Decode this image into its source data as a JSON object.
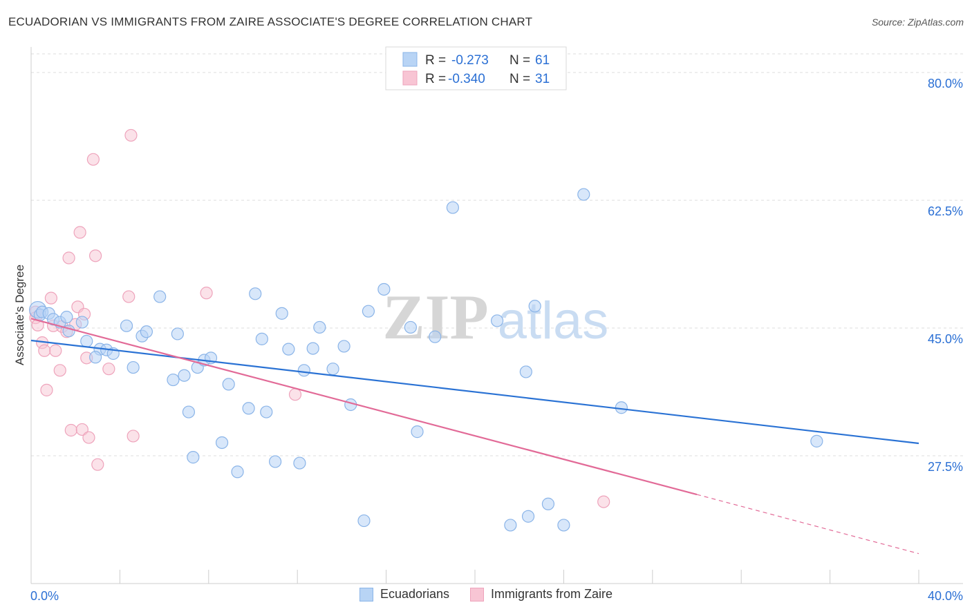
{
  "title": "ECUADORIAN VS IMMIGRANTS FROM ZAIRE ASSOCIATE'S DEGREE CORRELATION CHART",
  "source": "Source: ZipAtlas.com",
  "watermark": {
    "zip": "ZIP",
    "atlas": "atlas"
  },
  "legend_top": [
    {
      "r_label": "R =",
      "r_value": "-0.273",
      "n_label": "N =",
      "n_value": "61"
    },
    {
      "r_label": "R =",
      "r_value": "-0.340",
      "n_label": "N =",
      "n_value": "31"
    }
  ],
  "legend_bottom": [
    "Ecuadorians",
    "Immigrants from Zaire"
  ],
  "colors": {
    "blue_fill": "#b8d4f5",
    "blue_stroke": "#8ab4e8",
    "blue_line": "#2a72d4",
    "pink_fill": "#f8c5d4",
    "pink_stroke": "#eea3bb",
    "pink_line": "#e26a97",
    "value_text": "#2a6fd4",
    "grid": "#dddddd"
  },
  "chart_data": {
    "type": "scatter",
    "title": "ECUADORIAN VS IMMIGRANTS FROM ZAIRE ASSOCIATE'S DEGREE CORRELATION CHART",
    "xlabel": "",
    "ylabel": "Associate's Degree",
    "xlim": [
      0,
      40
    ],
    "ylim": [
      10,
      83.5
    ],
    "x_tick_labels": [
      "0.0%",
      "40.0%"
    ],
    "y_ticks": [
      27.5,
      45.0,
      62.5,
      80.0
    ],
    "y_tick_labels": [
      "27.5%",
      "45.0%",
      "62.5%",
      "80.0%"
    ],
    "grid": true,
    "legend_position": "top-center",
    "series": [
      {
        "name": "Ecuadorians",
        "r": -0.273,
        "n": 61,
        "trend": {
          "x0": 0,
          "y0": 43.3,
          "x1": 40,
          "y1": 29.2
        },
        "points": [
          [
            0.3,
            47.5
          ],
          [
            0.4,
            46.8
          ],
          [
            0.5,
            47.2
          ],
          [
            0.8,
            47.0
          ],
          [
            1.0,
            46.2
          ],
          [
            1.3,
            45.8
          ],
          [
            1.6,
            46.5
          ],
          [
            2.3,
            45.8
          ],
          [
            1.7,
            44.6
          ],
          [
            2.5,
            43.2
          ],
          [
            3.1,
            42.1
          ],
          [
            3.4,
            42.0
          ],
          [
            2.9,
            41.0
          ],
          [
            3.7,
            41.5
          ],
          [
            4.3,
            45.3
          ],
          [
            4.6,
            39.6
          ],
          [
            5.0,
            43.9
          ],
          [
            5.2,
            44.5
          ],
          [
            5.8,
            49.3
          ],
          [
            6.4,
            37.9
          ],
          [
            6.9,
            38.5
          ],
          [
            6.6,
            44.2
          ],
          [
            7.1,
            33.5
          ],
          [
            7.5,
            39.6
          ],
          [
            7.3,
            27.3
          ],
          [
            7.8,
            40.6
          ],
          [
            8.1,
            40.9
          ],
          [
            8.6,
            29.3
          ],
          [
            8.9,
            37.3
          ],
          [
            9.3,
            25.3
          ],
          [
            9.8,
            34.0
          ],
          [
            10.1,
            49.7
          ],
          [
            10.4,
            43.5
          ],
          [
            10.6,
            33.5
          ],
          [
            11.0,
            26.7
          ],
          [
            11.3,
            47.0
          ],
          [
            11.6,
            42.1
          ],
          [
            12.1,
            26.5
          ],
          [
            12.3,
            39.2
          ],
          [
            12.7,
            42.2
          ],
          [
            13.0,
            45.1
          ],
          [
            13.6,
            39.4
          ],
          [
            14.1,
            42.5
          ],
          [
            14.4,
            34.5
          ],
          [
            15.0,
            18.6
          ],
          [
            15.2,
            47.3
          ],
          [
            15.9,
            50.3
          ],
          [
            17.1,
            45.1
          ],
          [
            17.4,
            30.8
          ],
          [
            18.2,
            43.8
          ],
          [
            19.0,
            61.5
          ],
          [
            21.0,
            46.0
          ],
          [
            21.6,
            18.0
          ],
          [
            22.4,
            19.2
          ],
          [
            22.3,
            39.0
          ],
          [
            22.7,
            48.0
          ],
          [
            23.3,
            20.9
          ],
          [
            24.0,
            18.0
          ],
          [
            24.9,
            63.3
          ],
          [
            26.6,
            34.1
          ],
          [
            35.4,
            29.5
          ]
        ]
      },
      {
        "name": "Immigrants from Zaire",
        "r": -0.34,
        "n": 31,
        "trend": {
          "x0": 0,
          "y0": 46.3,
          "x1": 30.0,
          "y1": 22.2,
          "dash_x1": 40,
          "dash_y1": 14.1
        },
        "points": [
          [
            0.2,
            47.2
          ],
          [
            0.2,
            46.4
          ],
          [
            0.3,
            45.4
          ],
          [
            0.5,
            43.0
          ],
          [
            0.6,
            41.9
          ],
          [
            0.7,
            36.5
          ],
          [
            0.9,
            49.1
          ],
          [
            1.0,
            45.3
          ],
          [
            1.1,
            41.9
          ],
          [
            1.3,
            39.2
          ],
          [
            1.4,
            45.2
          ],
          [
            1.6,
            44.5
          ],
          [
            1.7,
            54.6
          ],
          [
            1.8,
            31.0
          ],
          [
            2.0,
            45.5
          ],
          [
            2.1,
            47.9
          ],
          [
            2.2,
            58.1
          ],
          [
            2.3,
            31.1
          ],
          [
            2.4,
            46.9
          ],
          [
            2.5,
            40.9
          ],
          [
            2.6,
            30.0
          ],
          [
            2.8,
            68.1
          ],
          [
            2.9,
            54.9
          ],
          [
            3.0,
            26.3
          ],
          [
            3.5,
            39.4
          ],
          [
            4.4,
            49.3
          ],
          [
            4.5,
            71.4
          ],
          [
            4.6,
            30.2
          ],
          [
            7.9,
            49.8
          ],
          [
            11.9,
            35.9
          ],
          [
            25.8,
            21.2
          ]
        ]
      }
    ]
  }
}
